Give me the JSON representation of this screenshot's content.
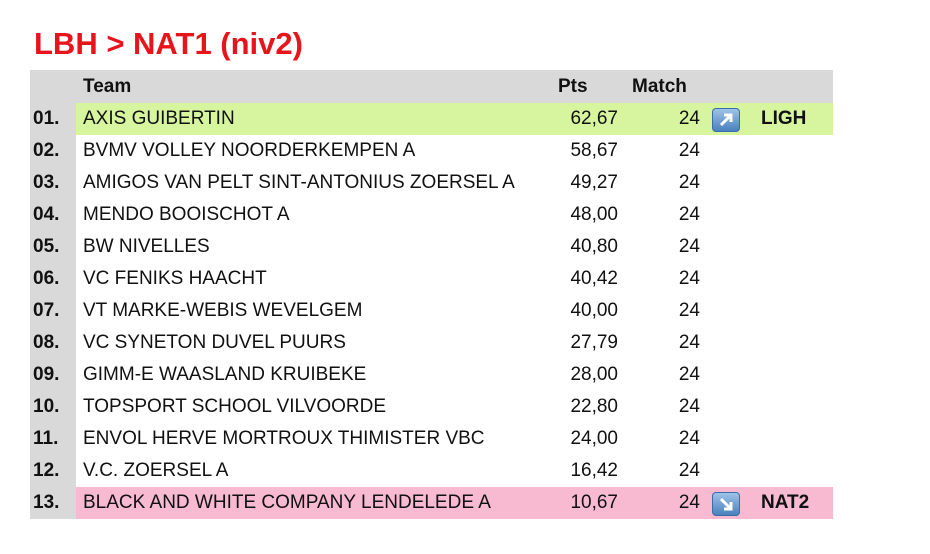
{
  "header": {
    "title": "LBH > NAT1 (niv2)"
  },
  "table": {
    "columns": [
      "Team",
      "Pts",
      "Match"
    ],
    "rows": [
      {
        "rank": "01.",
        "team": "AXIS GUIBERTIN",
        "pts": "62,67",
        "match": 24,
        "status": "LIGH",
        "color": "#d6f59e"
      },
      {
        "rank": "02.",
        "team": "BVMV VOLLEY NOORDERKEMPEN A",
        "pts": "58,67",
        "match": 24
      },
      {
        "rank": "03.",
        "team": "AMIGOS VAN PELT SINT-ANTONIUS ZOERSEL A",
        "pts": "49,27",
        "match": 24
      },
      {
        "rank": "04.",
        "team": "MENDO BOOISCHOT A",
        "pts": "48,00",
        "match": 24
      },
      {
        "rank": "05.",
        "team": "BW NIVELLES",
        "pts": "40,80",
        "match": 24
      },
      {
        "rank": "06.",
        "team": "VC FENIKS HAACHT",
        "pts": "40,42",
        "match": 24
      },
      {
        "rank": "07.",
        "team": "VT MARKE-WEBIS WEVELGEM",
        "pts": "40,00",
        "match": 24
      },
      {
        "rank": "08.",
        "team": "VC SYNETON DUVEL PUURS",
        "pts": "27,79",
        "match": 24
      },
      {
        "rank": "09.",
        "team": "GIMM-E WAASLAND KRUIBEKE",
        "pts": "28,00",
        "match": 24
      },
      {
        "rank": "10.",
        "team": "TOPSPORT SCHOOL VILVOORDE",
        "pts": "22,80",
        "match": 24
      },
      {
        "rank": "11.",
        "team": "ENVOL HERVE MORTROUX THIMISTER VBC",
        "pts": "24,00",
        "match": 24
      },
      {
        "rank": "12.",
        "team": "V.C. ZOERSEL A",
        "pts": "16,42",
        "match": 24
      },
      {
        "rank": "13.",
        "team": "BLACK AND WHITE COMPANY LENDELEDE A",
        "pts": "10,67",
        "match": 24,
        "status": "NAT2",
        "color": "#f8bad0"
      }
    ]
  }
}
